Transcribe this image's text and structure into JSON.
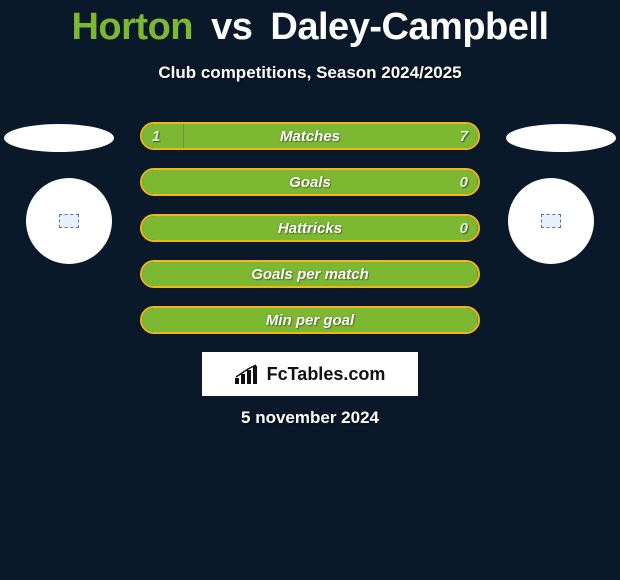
{
  "title": {
    "player1": "Horton",
    "vs": "vs",
    "player2": "Daley-Campbell",
    "player1_color": "#7db833",
    "vs_color": "#ffffff",
    "player2_color": "#ffffff"
  },
  "subtitle": "Club competitions, Season 2024/2025",
  "background_color": "#0a1929",
  "accent_border_color": "#f2b51e",
  "fill_color": "#7db833",
  "text_color": "#ffffff",
  "stats": [
    {
      "label": "Matches",
      "left_val": "1",
      "right_val": "7",
      "left_pct": 12.5,
      "right_pct": 87.5
    },
    {
      "label": "Goals",
      "left_val": "",
      "right_val": "0",
      "left_pct": 100,
      "right_pct": 0
    },
    {
      "label": "Hattricks",
      "left_val": "",
      "right_val": "0",
      "left_pct": 100,
      "right_pct": 0
    },
    {
      "label": "Goals per match",
      "left_val": "",
      "right_val": "",
      "left_pct": 100,
      "right_pct": 0
    },
    {
      "label": "Min per goal",
      "left_val": "",
      "right_val": "",
      "left_pct": 100,
      "right_pct": 0
    }
  ],
  "brand": "FcTables.com",
  "date": "5 november 2024",
  "side_shapes": {
    "ellipse_color": "#ffffff",
    "circle_color": "#ffffff"
  }
}
